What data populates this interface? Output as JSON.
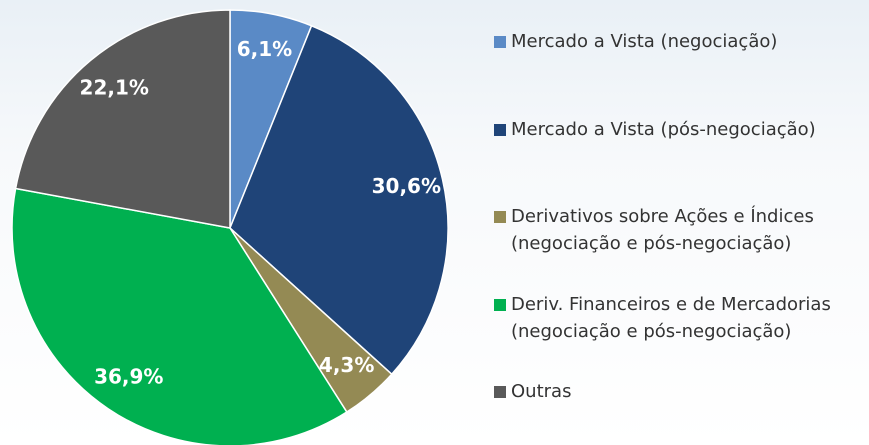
{
  "chart_data": {
    "type": "pie",
    "categories": [
      "Mercado a Vista (negociação)",
      "Mercado a Vista (pós-negociação)",
      "Derivativos sobre Ações e Índices (negociação e pós-negociação)",
      "Deriv. Financeiros e de Mercadorias (negociação e pós-negociação)",
      "Outras"
    ],
    "values": [
      6.1,
      30.6,
      4.3,
      36.9,
      22.1
    ],
    "value_labels": [
      "6,1%",
      "30,6%",
      "4,3%",
      "36,9%",
      "22,1%"
    ],
    "colors": [
      "#5a8ac6",
      "#1f4478",
      "#948a54",
      "#00b050",
      "#595959"
    ]
  }
}
